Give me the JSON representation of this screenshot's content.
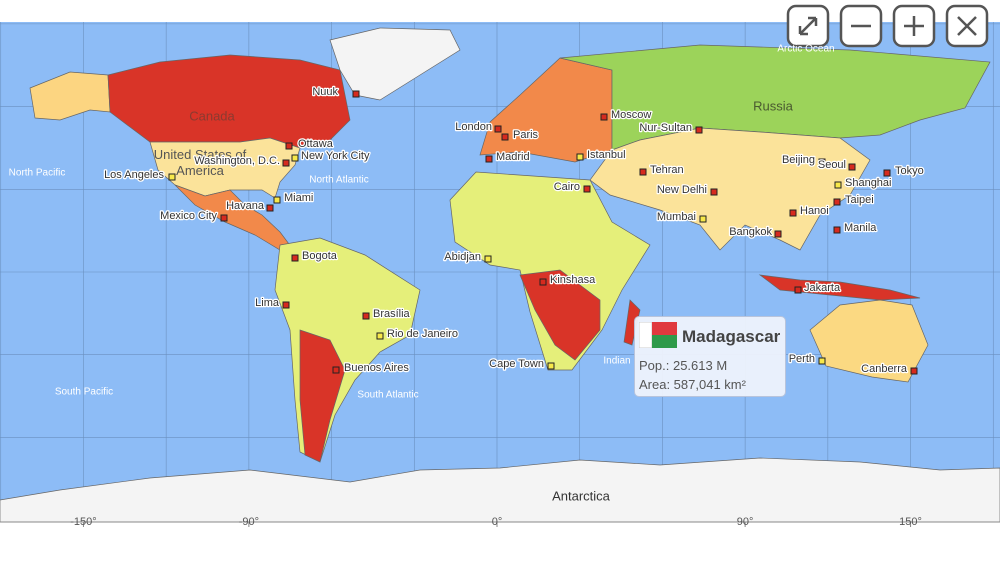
{
  "map": {
    "ocean_labels": [
      "North Pacific",
      "North Atlantic",
      "South Pacific",
      "South Atlantic",
      "Indian",
      "Arctic Ocean"
    ],
    "country_labels": [
      "Canada",
      "United States of America",
      "Russia",
      "Antarctica"
    ],
    "cities": [
      {
        "name": "Nuuk",
        "marker_color": "#d62a1e"
      },
      {
        "name": "Ottawa",
        "marker_color": "#d62a1e"
      },
      {
        "name": "Washington, D.C.",
        "marker_color": "#d62a1e"
      },
      {
        "name": "New York City",
        "marker_color": "#f7e84a"
      },
      {
        "name": "Los Angeles",
        "marker_color": "#f7e84a"
      },
      {
        "name": "Miami",
        "marker_color": "#f7e84a"
      },
      {
        "name": "Havana",
        "marker_color": "#d62a1e"
      },
      {
        "name": "Mexico City",
        "marker_color": "#d62a1e"
      },
      {
        "name": "Bogota",
        "marker_color": "#d62a1e"
      },
      {
        "name": "Lima",
        "marker_color": "#d62a1e"
      },
      {
        "name": "Brasília",
        "marker_color": "#d62a1e"
      },
      {
        "name": "Rio de Janeiro",
        "marker_color": "#f7e84a"
      },
      {
        "name": "Buenos Aires",
        "marker_color": "#d62a1e"
      },
      {
        "name": "London",
        "marker_color": "#d62a1e"
      },
      {
        "name": "Paris",
        "marker_color": "#d62a1e"
      },
      {
        "name": "Madrid",
        "marker_color": "#d62a1e"
      },
      {
        "name": "Moscow",
        "marker_color": "#d62a1e"
      },
      {
        "name": "Nur-Sultan",
        "marker_color": "#d62a1e"
      },
      {
        "name": "Istanbul",
        "marker_color": "#f7e84a"
      },
      {
        "name": "Cairo",
        "marker_color": "#d62a1e"
      },
      {
        "name": "Tehran",
        "marker_color": "#d62a1e"
      },
      {
        "name": "New Delhi",
        "marker_color": "#d62a1e"
      },
      {
        "name": "Mumbai",
        "marker_color": "#f7e84a"
      },
      {
        "name": "Beijing",
        "marker_color": "#d62a1e"
      },
      {
        "name": "Seoul",
        "marker_color": "#d62a1e"
      },
      {
        "name": "Tokyo",
        "marker_color": "#d62a1e"
      },
      {
        "name": "Shanghai",
        "marker_color": "#f7e84a"
      },
      {
        "name": "Taipei",
        "marker_color": "#d62a1e"
      },
      {
        "name": "Hanoi",
        "marker_color": "#d62a1e"
      },
      {
        "name": "Bangkok",
        "marker_color": "#d62a1e"
      },
      {
        "name": "Manila",
        "marker_color": "#d62a1e"
      },
      {
        "name": "Jakarta",
        "marker_color": "#d62a1e"
      },
      {
        "name": "Perth",
        "marker_color": "#f7e84a"
      },
      {
        "name": "Canberra",
        "marker_color": "#d62a1e"
      },
      {
        "name": "Abidjan",
        "marker_color": "#f7e84a"
      },
      {
        "name": "Kinshasa",
        "marker_color": "#d62a1e"
      },
      {
        "name": "Cape Town",
        "marker_color": "#f7e84a"
      }
    ],
    "longitude_ticks": [
      {
        "value": -150,
        "label": "-150°"
      },
      {
        "value": -90,
        "label": "-90°"
      },
      {
        "value": 0,
        "label": "0°"
      },
      {
        "value": 90,
        "label": "90°"
      },
      {
        "value": 150,
        "label": "150°"
      }
    ]
  },
  "tooltip": {
    "title": "Madagascar",
    "population": "Pop.: 25.613 M",
    "area": "Area: 587,041 km²"
  }
}
